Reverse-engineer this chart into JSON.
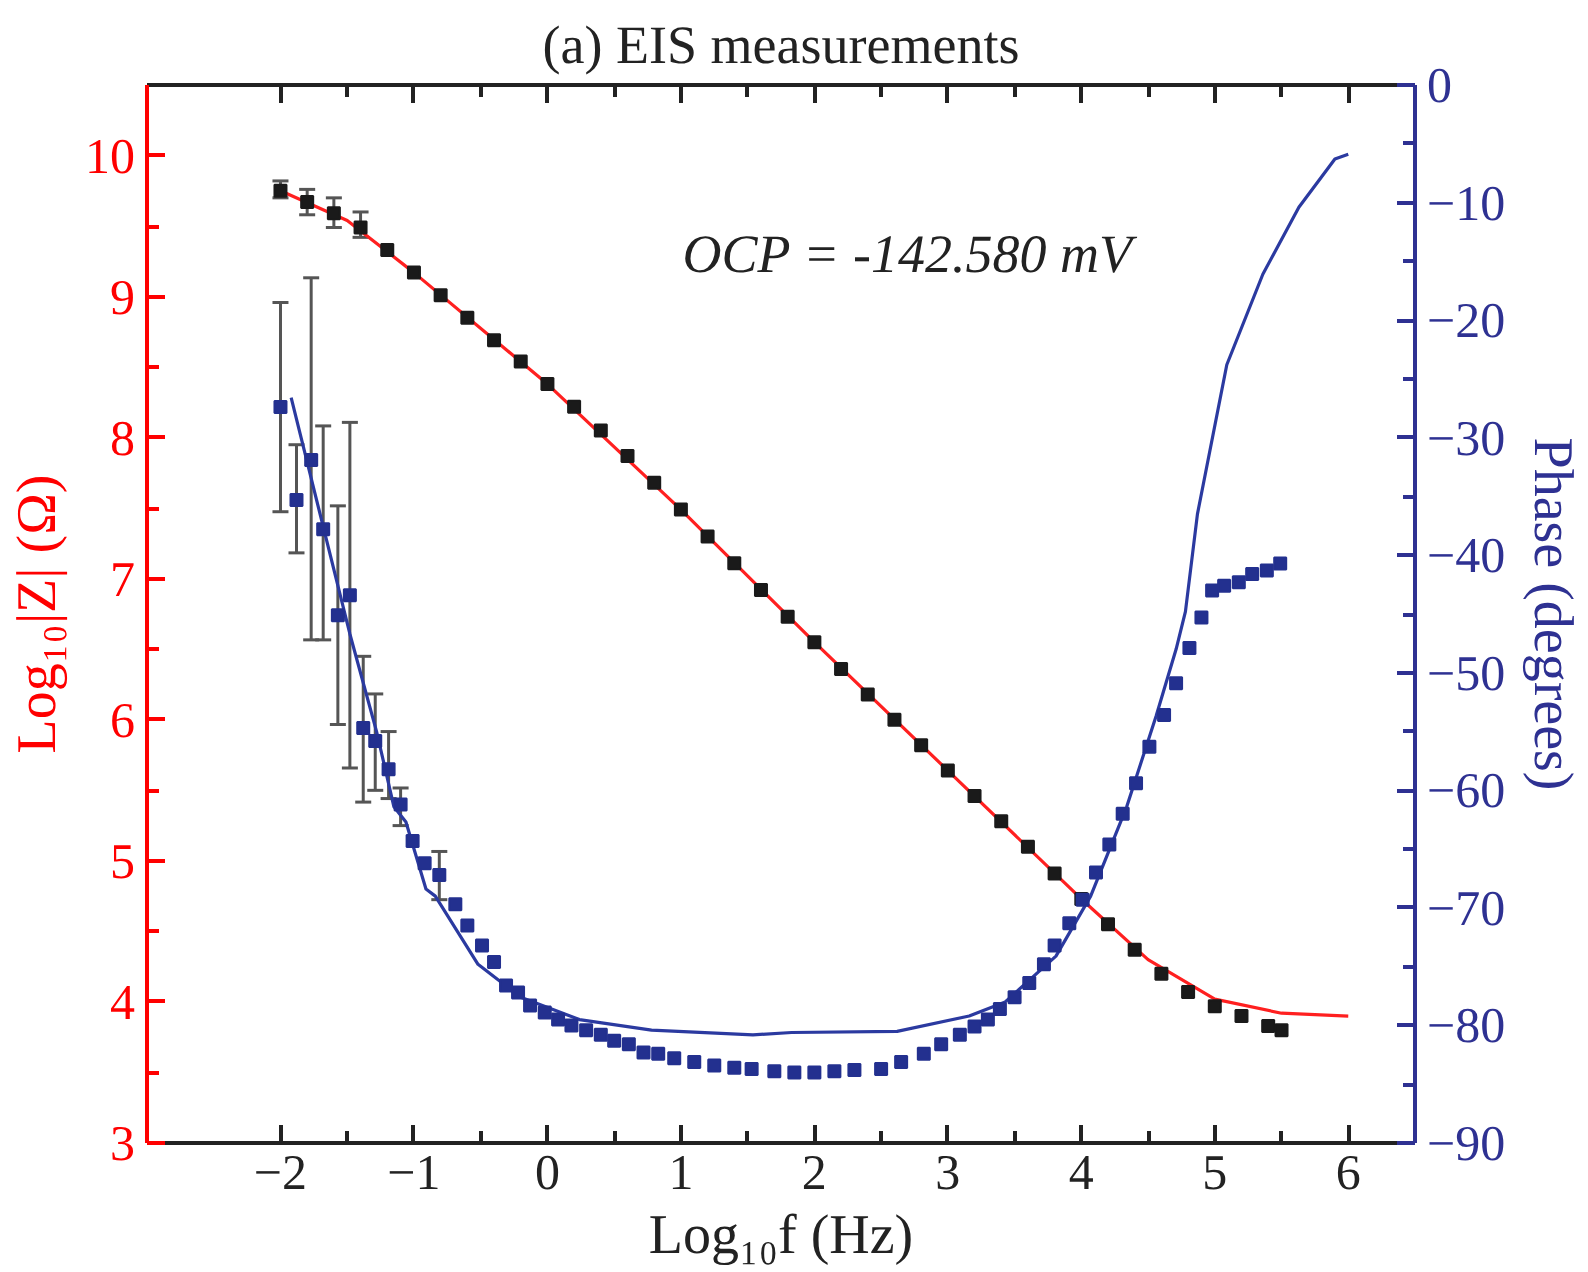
{
  "chart_data": {
    "type": "scatter",
    "title": "(a) EIS measurements",
    "xlabel": "Log₁₀f (Hz)",
    "ylabel": "Log₁₀|Z| (Ω)",
    "y2label": "Phase (degrees)",
    "xlim": [
      -3,
      6.5
    ],
    "xticks": [
      -2,
      -1,
      0,
      1,
      2,
      3,
      4,
      5,
      6
    ],
    "ylim": [
      3,
      10.5
    ],
    "yticks": [
      3,
      4,
      5,
      6,
      7,
      8,
      9,
      10
    ],
    "y2lim": [
      -90,
      0
    ],
    "y2ticks": [
      -90,
      -80,
      -70,
      -60,
      -50,
      -40,
      -30,
      -20,
      -10,
      0
    ],
    "grid": false,
    "annotations": [
      "OCP = -142.580 mV"
    ],
    "series": [
      {
        "marker": "square",
        "color": "#1a1a1a",
        "x": [
          -2.0,
          -1.8,
          -1.6,
          -1.4,
          -1.2,
          -1.0,
          -0.8,
          -0.6,
          -0.4,
          -0.2,
          0.0,
          0.2,
          0.4,
          0.6,
          0.8,
          1.0,
          1.2,
          1.4,
          1.6,
          1.8,
          2.0,
          2.2,
          2.4,
          2.6,
          2.8,
          3.0,
          3.2,
          3.4,
          3.6,
          3.8,
          4.0,
          4.2,
          4.4,
          4.6,
          4.8,
          5.0,
          5.2,
          5.4,
          5.5
        ],
        "values": [
          9.75,
          9.67,
          9.59,
          9.49,
          9.33,
          9.17,
          9.01,
          8.85,
          8.69,
          8.54,
          8.38,
          8.22,
          8.05,
          7.87,
          7.68,
          7.49,
          7.3,
          7.11,
          6.92,
          6.73,
          6.55,
          6.36,
          6.18,
          6.0,
          5.82,
          5.64,
          5.46,
          5.28,
          5.1,
          4.91,
          4.73,
          4.55,
          4.37,
          4.2,
          4.07,
          3.97,
          3.9,
          3.83,
          3.8
        ],
        "errors": [
          [
            9.7,
            9.82
          ],
          [
            9.58,
            9.76
          ],
          [
            9.49,
            9.7
          ],
          [
            9.42,
            9.6
          ],
          null,
          null,
          null,
          null,
          null,
          null,
          null,
          null,
          null,
          null,
          null,
          null,
          null,
          null,
          null,
          null,
          null,
          null,
          null,
          null,
          null,
          null,
          null,
          null,
          null,
          null,
          null,
          null,
          null,
          null,
          null,
          null,
          null,
          null,
          null
        ]
      },
      {
        "type": "line",
        "line_style": "solid",
        "color": "#ff2020",
        "x": [
          -2.0,
          -1.5,
          -1.0,
          0.0,
          1.0,
          2.0,
          3.0,
          4.0,
          4.5,
          5.0,
          5.5,
          6.0
        ],
        "values": [
          9.75,
          9.54,
          9.17,
          8.38,
          7.49,
          6.55,
          5.64,
          4.73,
          4.3,
          4.02,
          3.92,
          3.9
        ]
      },
      {
        "axis": "y2",
        "marker": "square",
        "color": "#23308f",
        "x": [
          -2.0,
          -1.88,
          -1.77,
          -1.68,
          -1.57,
          -1.48,
          -1.38,
          -1.29,
          -1.19,
          -1.1,
          -1.01,
          -0.92,
          -0.81,
          -0.69,
          -0.6,
          -0.49,
          -0.4,
          -0.31,
          -0.22,
          -0.13,
          -0.02,
          0.08,
          0.18,
          0.29,
          0.4,
          0.5,
          0.61,
          0.72,
          0.83,
          0.95,
          1.1,
          1.25,
          1.4,
          1.53,
          1.7,
          1.85,
          2.0,
          2.15,
          2.3,
          2.5,
          2.65,
          2.82,
          2.95,
          3.09,
          3.2,
          3.3,
          3.39,
          3.5,
          3.61,
          3.72,
          3.8,
          3.91,
          4.01,
          4.11,
          4.21,
          4.31,
          4.41,
          4.51,
          4.62,
          4.71,
          4.81,
          4.9,
          4.98,
          5.07,
          5.18,
          5.28,
          5.39,
          5.49
        ],
        "values": [
          -27.4,
          -35.3,
          -31.9,
          -37.8,
          -45.1,
          -43.4,
          -54.7,
          -55.8,
          -58.2,
          -61.2,
          -64.3,
          -66.2,
          -67.2,
          -69.7,
          -71.5,
          -73.2,
          -74.6,
          -76.6,
          -77.2,
          -78.3,
          -78.9,
          -79.5,
          -80.0,
          -80.4,
          -80.8,
          -81.3,
          -81.6,
          -82.3,
          -82.4,
          -82.8,
          -83.1,
          -83.4,
          -83.6,
          -83.7,
          -83.9,
          -84.0,
          -84.0,
          -83.9,
          -83.8,
          -83.7,
          -83.1,
          -82.4,
          -81.6,
          -80.8,
          -80.1,
          -79.5,
          -78.6,
          -77.6,
          -76.4,
          -74.8,
          -73.2,
          -71.3,
          -69.3,
          -67.0,
          -64.6,
          -62.0,
          -59.4,
          -56.3,
          -53.6,
          -50.9,
          -47.9,
          -45.3,
          -43.0,
          -42.6,
          -42.3,
          -41.6,
          -41.3,
          -40.7
        ],
        "errors": [
          [
            -36.3,
            -18.5
          ],
          [
            -39.8,
            -30.6
          ],
          [
            -47.2,
            -16.4
          ],
          [
            -47.2,
            -29.0
          ],
          [
            -54.4,
            -35.8
          ],
          [
            -58.1,
            -28.7
          ],
          [
            -61.0,
            -48.6
          ],
          [
            -60.0,
            -51.8
          ],
          [
            -60.7,
            -55.0
          ],
          [
            -63.0,
            -59.8
          ],
          null,
          null,
          [
            -69.3,
            -65.2
          ],
          null,
          null,
          null,
          null,
          null,
          null,
          null,
          null,
          null,
          null,
          null,
          null,
          null,
          null,
          null,
          null,
          null,
          null,
          null,
          null,
          null,
          null,
          null,
          null,
          null,
          null,
          null,
          null,
          null,
          null,
          null,
          null,
          null,
          null,
          null,
          null,
          null,
          null,
          null,
          null,
          null,
          null,
          null,
          null,
          null,
          null,
          null,
          null,
          null,
          null,
          null,
          null,
          null,
          null,
          null
        ]
      },
      {
        "type": "line",
        "axis": "y2",
        "line_style": "solid",
        "color": "#2b3aa0",
        "x": [
          -1.92,
          -1.48,
          -1.28,
          -1.15,
          -1.06,
          -0.91,
          -0.84,
          -0.52,
          -0.2,
          0.24,
          0.78,
          1.54,
          1.83,
          2.62,
          3.16,
          3.43,
          3.81,
          4.07,
          4.34,
          4.56,
          4.71,
          4.78,
          4.87,
          5.09,
          5.36,
          5.63,
          5.9,
          6.0
        ],
        "values": [
          -26.6,
          -46.7,
          -55.0,
          -61.4,
          -62.7,
          -68.4,
          -69.0,
          -74.8,
          -77.6,
          -79.5,
          -80.4,
          -80.8,
          -80.6,
          -80.5,
          -79.2,
          -78.0,
          -74.1,
          -69.0,
          -61.4,
          -53.7,
          -48.0,
          -44.8,
          -36.5,
          -23.8,
          -16.1,
          -10.4,
          -6.3,
          -5.9
        ]
      }
    ]
  }
}
